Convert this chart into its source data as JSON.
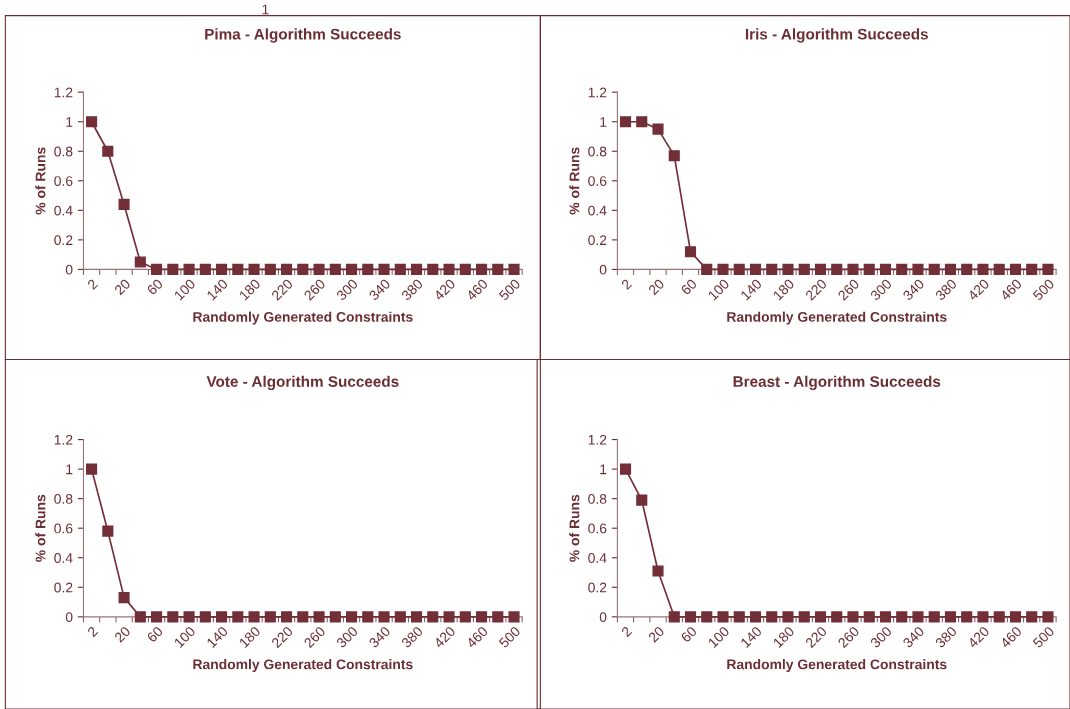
{
  "chart_data": [
    {
      "type": "line",
      "title": "Pima - Algorithm Succeeds",
      "xlabel": "Randomly Generated Constraints",
      "ylabel": "% of Runs",
      "categories": [
        "2",
        null,
        "20",
        null,
        "60",
        null,
        "100",
        null,
        "140",
        null,
        "180",
        null,
        "220",
        null,
        "260",
        null,
        "300",
        null,
        "340",
        null,
        "380",
        null,
        "420",
        null,
        "460",
        null,
        "500"
      ],
      "series": [
        {
          "color": "#722f37",
          "values": [
            1,
            0.8,
            0.44,
            0.05,
            0,
            0,
            0,
            0,
            0,
            0,
            0,
            0,
            0,
            0,
            0,
            0,
            0,
            0,
            0,
            0,
            0,
            0,
            0,
            0,
            0,
            0,
            0
          ]
        }
      ],
      "ylim": [
        0,
        1.2
      ],
      "yticks": [
        0,
        0.2,
        0.4,
        0.6,
        0.8,
        1,
        1.2
      ],
      "marker": "square",
      "line_style": "solid",
      "grid": false,
      "annotations": [
        "1"
      ]
    },
    {
      "type": "line",
      "title": "Iris - Algorithm Succeeds",
      "xlabel": "Randomly Generated Constraints",
      "ylabel": "% of Runs",
      "categories": [
        "2",
        null,
        "20",
        null,
        "60",
        null,
        "100",
        null,
        "140",
        null,
        "180",
        null,
        "220",
        null,
        "260",
        null,
        "300",
        null,
        "340",
        null,
        "380",
        null,
        "420",
        null,
        "460",
        null,
        "500"
      ],
      "series": [
        {
          "color": "#722f37",
          "values": [
            1,
            1,
            0.95,
            0.77,
            0.12,
            0,
            0,
            0,
            0,
            0,
            0,
            0,
            0,
            0,
            0,
            0,
            0,
            0,
            0,
            0,
            0,
            0,
            0,
            0,
            0,
            0,
            0
          ]
        }
      ],
      "ylim": [
        0,
        1.2
      ],
      "yticks": [
        0,
        0.2,
        0.4,
        0.6,
        0.8,
        1,
        1.2
      ],
      "marker": "square",
      "line_style": "solid",
      "grid": false
    },
    {
      "type": "line",
      "title": "Vote - Algorithm Succeeds",
      "xlabel": "Randomly Generated Constraints",
      "ylabel": "% of Runs",
      "categories": [
        "2",
        null,
        "20",
        null,
        "60",
        null,
        "100",
        null,
        "140",
        null,
        "180",
        null,
        "220",
        null,
        "260",
        null,
        "300",
        null,
        "340",
        null,
        "380",
        null,
        "420",
        null,
        "460",
        null,
        "500"
      ],
      "series": [
        {
          "color": "#722f37",
          "values": [
            1,
            0.58,
            0.13,
            0,
            0,
            0,
            0,
            0,
            0,
            0,
            0,
            0,
            0,
            0,
            0,
            0,
            0,
            0,
            0,
            0,
            0,
            0,
            0,
            0,
            0,
            0,
            0
          ]
        }
      ],
      "ylim": [
        0,
        1.2
      ],
      "yticks": [
        0,
        0.2,
        0.4,
        0.6,
        0.8,
        1,
        1.2
      ],
      "marker": "square",
      "line_style": "solid",
      "grid": false
    },
    {
      "type": "line",
      "title": "Breast - Algorithm Succeeds",
      "xlabel": "Randomly Generated Constraints",
      "ylabel": "% of Runs",
      "categories": [
        "2",
        null,
        "20",
        null,
        "60",
        null,
        "100",
        null,
        "140",
        null,
        "180",
        null,
        "220",
        null,
        "260",
        null,
        "300",
        null,
        "340",
        null,
        "380",
        null,
        "420",
        null,
        "460",
        null,
        "500"
      ],
      "series": [
        {
          "color": "#722f37",
          "values": [
            1,
            0.79,
            0.31,
            0,
            0,
            0,
            0,
            0,
            0,
            0,
            0,
            0,
            0,
            0,
            0,
            0,
            0,
            0,
            0,
            0,
            0,
            0,
            0,
            0,
            0,
            0,
            0
          ]
        }
      ],
      "ylim": [
        0,
        1.2
      ],
      "yticks": [
        0,
        0.2,
        0.4,
        0.6,
        0.8,
        1,
        1.2
      ],
      "marker": "square",
      "line_style": "solid",
      "grid": false
    }
  ]
}
